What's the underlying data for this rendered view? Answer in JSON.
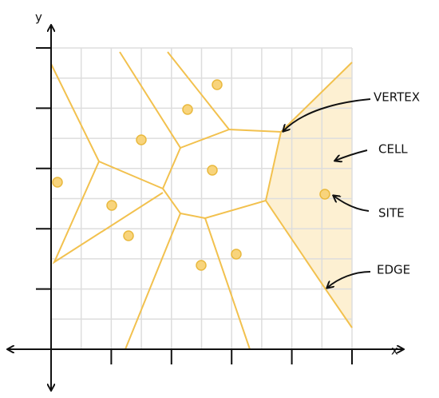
{
  "axes": {
    "x_label": "x",
    "y_label": "y"
  },
  "annotations": [
    {
      "label": "VERTEX"
    },
    {
      "label": "CELL"
    },
    {
      "label": "SITE"
    },
    {
      "label": "EDGE"
    }
  ]
}
